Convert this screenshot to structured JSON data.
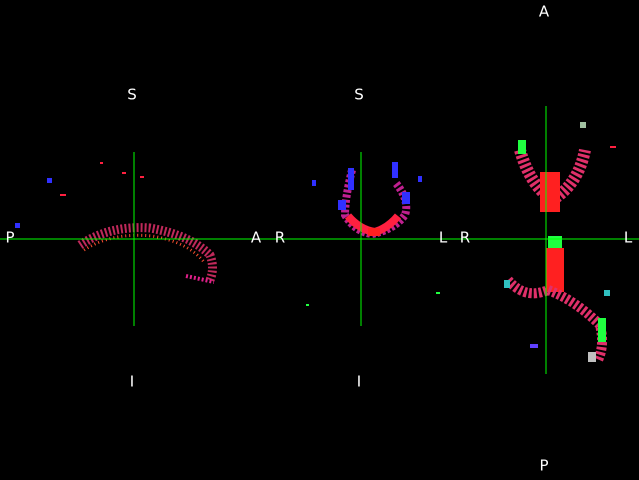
{
  "views": [
    {
      "name": "sagittal",
      "labels": {
        "top": "S",
        "bottom": "I",
        "left": "P",
        "right": "A"
      }
    },
    {
      "name": "coronal",
      "labels": {
        "top": "S",
        "bottom": "I",
        "left": "R",
        "right": "L"
      }
    },
    {
      "name": "axial",
      "labels": {
        "top": "A",
        "bottom": "P",
        "left": "R",
        "right": "L"
      }
    }
  ],
  "colors": {
    "background": "#000000",
    "crosshair": "#00ff00",
    "label": "#ffffff",
    "fiber_red": "#ff2040",
    "fiber_magenta": "#e0208a",
    "fiber_blue": "#3030ff",
    "fiber_green": "#20ff40"
  }
}
